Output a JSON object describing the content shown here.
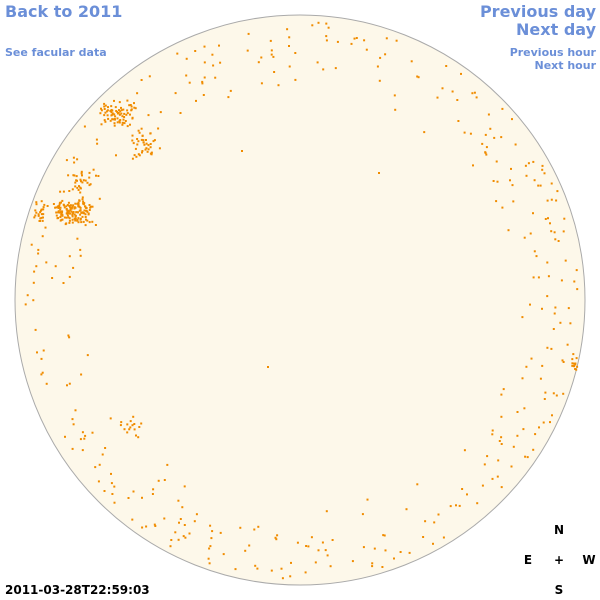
{
  "nav": {
    "back": "Back to 2011",
    "facular": "See facular data",
    "previous_day": "Previous day",
    "next_day": "Next day",
    "previous_hour": "Previous hour",
    "next_hour": "Next hour"
  },
  "timestamp": "2011-03-28T22:59:03",
  "compass": {
    "north": "N",
    "east": "E",
    "center": "+",
    "west": "W",
    "south": "S"
  }
}
